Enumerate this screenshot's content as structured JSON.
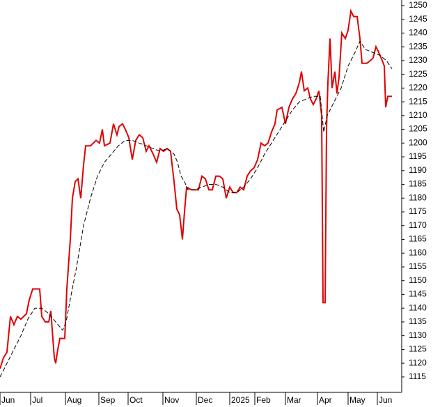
{
  "chart_data": {
    "type": "line",
    "xlim": [
      0,
      288.5
    ],
    "xticks": [
      {
        "value": 0,
        "label": "Jun"
      },
      {
        "value": 22,
        "label": "Jul"
      },
      {
        "value": 47,
        "label": "Aug"
      },
      {
        "value": 71,
        "label": "Sep"
      },
      {
        "value": 92,
        "label": "Oct"
      },
      {
        "value": 117,
        "label": "Nov"
      },
      {
        "value": 141,
        "label": "Dec"
      },
      {
        "value": 165,
        "label": "2025"
      },
      {
        "value": 183,
        "label": "Feb"
      },
      {
        "value": 205,
        "label": "Mar"
      },
      {
        "value": 228,
        "label": "Apr"
      },
      {
        "value": 250,
        "label": "May"
      },
      {
        "value": 271,
        "label": "Jun"
      }
    ],
    "ylim": [
      1109.4,
      1252
    ],
    "yticks": [
      1115,
      1120,
      1125,
      1130,
      1135,
      1140,
      1145,
      1150,
      1155,
      1160,
      1165,
      1170,
      1175,
      1180,
      1185,
      1190,
      1195,
      1200,
      1205,
      1210,
      1215,
      1220,
      1225,
      1230,
      1235,
      1240,
      1245,
      1250
    ],
    "series": [
      {
        "color": "#e00000",
        "dashed": false,
        "x": [
          0,
          2.5,
          5,
          7.5,
          10,
          12.5,
          15,
          19,
          21,
          23.5,
          28.5,
          30,
          32.5,
          35,
          36.5,
          39,
          40,
          41.5,
          43,
          46.5,
          48,
          50.5,
          52,
          54,
          56,
          58,
          60,
          61.5,
          65,
          69,
          71.5,
          73.5,
          75,
          79,
          81.5,
          84,
          85.5,
          88,
          90,
          92.5,
          95,
          97.5,
          100,
          102.5,
          105,
          107,
          110,
          112.5,
          115,
          117.5,
          120,
          122.5,
          125,
          127,
          129,
          131,
          132.5,
          134,
          137.5,
          142.5,
          145,
          147.5,
          150,
          152.5,
          155,
          157.5,
          160,
          162.5,
          165,
          167.5,
          170,
          172.5,
          175,
          177.5,
          180,
          182.5,
          185,
          187.5,
          190,
          192.5,
          195,
          197.5,
          199,
          202.5,
          205,
          207.5,
          210,
          212.5,
          215,
          216.5,
          218.5,
          221,
          223,
          225,
          227,
          229,
          231,
          232,
          233.5,
          234.5,
          235.5,
          237,
          238.5,
          240.5,
          242,
          243.5,
          245.5,
          248,
          250,
          252,
          254,
          256.5,
          258.5,
          260,
          263.5,
          266,
          268,
          270,
          272,
          274.5,
          276,
          277,
          278.5,
          281.5
        ],
        "values": [
          1118,
          1122,
          1124,
          1137,
          1134,
          1137,
          1136,
          1138,
          1143,
          1147,
          1147,
          1137,
          1135,
          1135,
          1139,
          1122,
          1120,
          1125,
          1129,
          1129,
          1147,
          1165,
          1180,
          1186,
          1187,
          1180,
          1192,
          1199,
          1199,
          1201,
          1200,
          1205,
          1199,
          1200,
          1207,
          1203,
          1206,
          1207,
          1205,
          1202,
          1194,
          1201,
          1203,
          1202,
          1197,
          1199,
          1196,
          1193,
          1198,
          1197,
          1198,
          1197,
          1186,
          1176,
          1174,
          1165,
          1175,
          1184,
          1183,
          1183,
          1188,
          1187,
          1183,
          1183,
          1188,
          1188,
          1187,
          1180,
          1184,
          1182,
          1182,
          1184,
          1183,
          1188,
          1190,
          1191,
          1194,
          1200,
          1199,
          1200,
          1204,
          1207,
          1212,
          1213,
          1207,
          1213,
          1216,
          1218,
          1222,
          1226,
          1219,
          1220,
          1216,
          1214,
          1216,
          1219,
          1210,
          1142,
          1142,
          1205,
          1222,
          1238,
          1220,
          1226,
          1218,
          1224,
          1240,
          1238,
          1241,
          1248,
          1246,
          1246,
          1238,
          1229,
          1229,
          1230,
          1231,
          1235,
          1233,
          1230,
          1228,
          1213,
          1217,
          1217
        ]
      },
      {
        "color": "#000000",
        "dashed": true,
        "x": [
          0,
          5,
          10,
          15,
          20,
          25,
          30,
          35,
          40,
          45,
          47.5,
          50,
          55,
          60,
          65,
          70,
          75,
          80,
          85,
          90,
          95,
          100,
          105,
          110,
          115,
          120,
          125,
          127.5,
          130,
          132.5,
          135,
          140,
          145,
          150,
          155,
          160,
          165,
          170,
          175,
          180,
          185,
          190,
          195,
          200,
          205,
          210,
          215,
          220,
          225,
          230,
          232.5,
          235,
          240,
          245,
          250,
          255,
          258.5,
          262.5,
          267.5,
          272.5,
          277.5,
          281.5
        ],
        "values": [
          1115,
          1120,
          1125,
          1130,
          1136,
          1140,
          1140,
          1138,
          1135,
          1132,
          1135,
          1142,
          1155,
          1170,
          1180,
          1188,
          1193,
          1196,
          1199,
          1201,
          1201,
          1200,
          1199,
          1198,
          1197,
          1198,
          1196,
          1193,
          1188,
          1186,
          1183,
          1183,
          1184,
          1185,
          1185,
          1184,
          1182,
          1182,
          1184,
          1187,
          1191,
          1196,
          1200,
          1204,
          1208,
          1212,
          1215,
          1216,
          1217,
          1217,
          1204,
          1210,
          1215,
          1220,
          1228,
          1233,
          1237,
          1234,
          1233,
          1232,
          1230,
          1227
        ]
      }
    ]
  }
}
